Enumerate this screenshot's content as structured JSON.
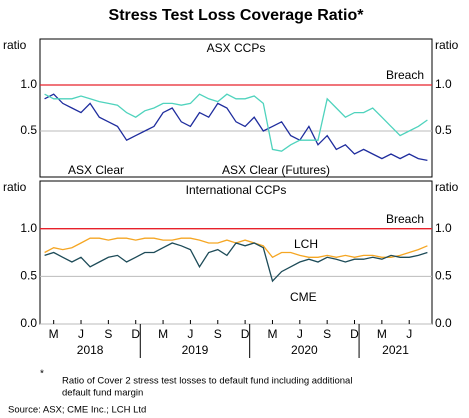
{
  "title": "Stress Test Loss Coverage Ratio*",
  "footnote_mark": "*",
  "footnote": [
    "Ratio of Cover 2 stress test losses to default fund including additional",
    "default fund margin"
  ],
  "source": "Source:   ASX; CME Inc.; LCH Ltd",
  "chart_data": [
    {
      "type": "line",
      "title": "ASX CCPs",
      "y_label": "ratio",
      "x": [
        "2018-02",
        "2018-03",
        "2018-04",
        "2018-05",
        "2018-06",
        "2018-07",
        "2018-08",
        "2018-09",
        "2018-10",
        "2018-11",
        "2018-12",
        "2019-01",
        "2019-02",
        "2019-03",
        "2019-04",
        "2019-05",
        "2019-06",
        "2019-07",
        "2019-08",
        "2019-09",
        "2019-10",
        "2019-11",
        "2019-12",
        "2020-01",
        "2020-02",
        "2020-03",
        "2020-04",
        "2020-05",
        "2020-06",
        "2020-07",
        "2020-08",
        "2020-09",
        "2020-10",
        "2020-11",
        "2020-12",
        "2021-01",
        "2021-02",
        "2021-03",
        "2021-04",
        "2021-05",
        "2021-06",
        "2021-07",
        "2021-08"
      ],
      "xlim": [
        "2018-02",
        "2021-08"
      ],
      "ylim": [
        0,
        1.5
      ],
      "yticks": [
        {
          "value": 0.5,
          "label": "0.5"
        },
        {
          "value": 1.0,
          "label": "1.0"
        }
      ],
      "breach": {
        "label": "Breach",
        "value": 1.0,
        "color": "#e8202a"
      },
      "series": [
        {
          "name": "ASX Clear",
          "color": "#1f2d9e",
          "values": [
            0.85,
            0.9,
            0.8,
            0.75,
            0.7,
            0.8,
            0.65,
            0.6,
            0.55,
            0.4,
            0.45,
            0.5,
            0.55,
            0.7,
            0.75,
            0.6,
            0.55,
            0.7,
            0.65,
            0.8,
            0.75,
            0.6,
            0.55,
            0.65,
            0.5,
            0.55,
            0.6,
            0.45,
            0.4,
            0.55,
            0.35,
            0.45,
            0.3,
            0.35,
            0.25,
            0.3,
            0.25,
            0.2,
            0.25,
            0.2,
            0.25,
            0.2,
            0.18
          ]
        },
        {
          "name": "ASX Clear (Futures)",
          "color": "#4fd3bd",
          "values": [
            0.9,
            0.85,
            0.85,
            0.85,
            0.88,
            0.85,
            0.82,
            0.8,
            0.78,
            0.7,
            0.65,
            0.72,
            0.75,
            0.8,
            0.8,
            0.78,
            0.8,
            0.9,
            0.85,
            0.82,
            0.9,
            0.85,
            0.85,
            0.88,
            0.8,
            0.3,
            0.28,
            0.35,
            0.4,
            0.4,
            0.4,
            0.85,
            0.75,
            0.65,
            0.7,
            0.7,
            0.75,
            0.65,
            0.55,
            0.45,
            0.5,
            0.55,
            0.62
          ]
        }
      ]
    },
    {
      "type": "line",
      "title": "International CCPs",
      "y_label": "ratio",
      "x": [
        "2018-02",
        "2018-03",
        "2018-04",
        "2018-05",
        "2018-06",
        "2018-07",
        "2018-08",
        "2018-09",
        "2018-10",
        "2018-11",
        "2018-12",
        "2019-01",
        "2019-02",
        "2019-03",
        "2019-04",
        "2019-05",
        "2019-06",
        "2019-07",
        "2019-08",
        "2019-09",
        "2019-10",
        "2019-11",
        "2019-12",
        "2020-01",
        "2020-02",
        "2020-03",
        "2020-04",
        "2020-05",
        "2020-06",
        "2020-07",
        "2020-08",
        "2020-09",
        "2020-10",
        "2020-11",
        "2020-12",
        "2021-01",
        "2021-02",
        "2021-03",
        "2021-04",
        "2021-05",
        "2021-06",
        "2021-07",
        "2021-08"
      ],
      "xlim": [
        "2018-02",
        "2021-08"
      ],
      "ylim": [
        0,
        1.5
      ],
      "yticks": [
        {
          "value": 0.0,
          "label": "0.0"
        },
        {
          "value": 0.5,
          "label": "0.5"
        },
        {
          "value": 1.0,
          "label": "1.0"
        }
      ],
      "xticks": [
        {
          "value": "2018-03",
          "label": "M"
        },
        {
          "value": "2018-06",
          "label": "J"
        },
        {
          "value": "2018-09",
          "label": "S"
        },
        {
          "value": "2018-12",
          "label": "D"
        },
        {
          "value": "2019-03",
          "label": "M"
        },
        {
          "value": "2019-06",
          "label": "J"
        },
        {
          "value": "2019-09",
          "label": "S"
        },
        {
          "value": "2019-12",
          "label": "D"
        },
        {
          "value": "2020-03",
          "label": "M"
        },
        {
          "value": "2020-06",
          "label": "J"
        },
        {
          "value": "2020-09",
          "label": "S"
        },
        {
          "value": "2020-12",
          "label": "D"
        },
        {
          "value": "2021-03",
          "label": "M"
        },
        {
          "value": "2021-06",
          "label": "J"
        }
      ],
      "years": [
        "2018",
        "2019",
        "2020",
        "2021"
      ],
      "breach": {
        "label": "Breach",
        "value": 1.0,
        "color": "#e8202a"
      },
      "series": [
        {
          "name": "LCH",
          "color": "#f5a623",
          "values": [
            0.75,
            0.8,
            0.78,
            0.8,
            0.85,
            0.9,
            0.9,
            0.88,
            0.9,
            0.9,
            0.88,
            0.9,
            0.9,
            0.88,
            0.88,
            0.9,
            0.9,
            0.88,
            0.85,
            0.85,
            0.88,
            0.85,
            0.88,
            0.85,
            0.82,
            0.7,
            0.75,
            0.75,
            0.72,
            0.7,
            0.7,
            0.72,
            0.7,
            0.72,
            0.7,
            0.72,
            0.72,
            0.7,
            0.7,
            0.72,
            0.75,
            0.78,
            0.82
          ]
        },
        {
          "name": "CME",
          "color": "#1d4b58",
          "values": [
            0.72,
            0.75,
            0.7,
            0.65,
            0.7,
            0.6,
            0.65,
            0.7,
            0.72,
            0.65,
            0.7,
            0.75,
            0.75,
            0.8,
            0.85,
            0.82,
            0.78,
            0.6,
            0.75,
            0.78,
            0.72,
            0.85,
            0.82,
            0.85,
            0.8,
            0.45,
            0.55,
            0.6,
            0.65,
            0.68,
            0.65,
            0.7,
            0.68,
            0.65,
            0.68,
            0.68,
            0.7,
            0.68,
            0.72,
            0.7,
            0.7,
            0.72,
            0.75
          ]
        }
      ]
    }
  ]
}
